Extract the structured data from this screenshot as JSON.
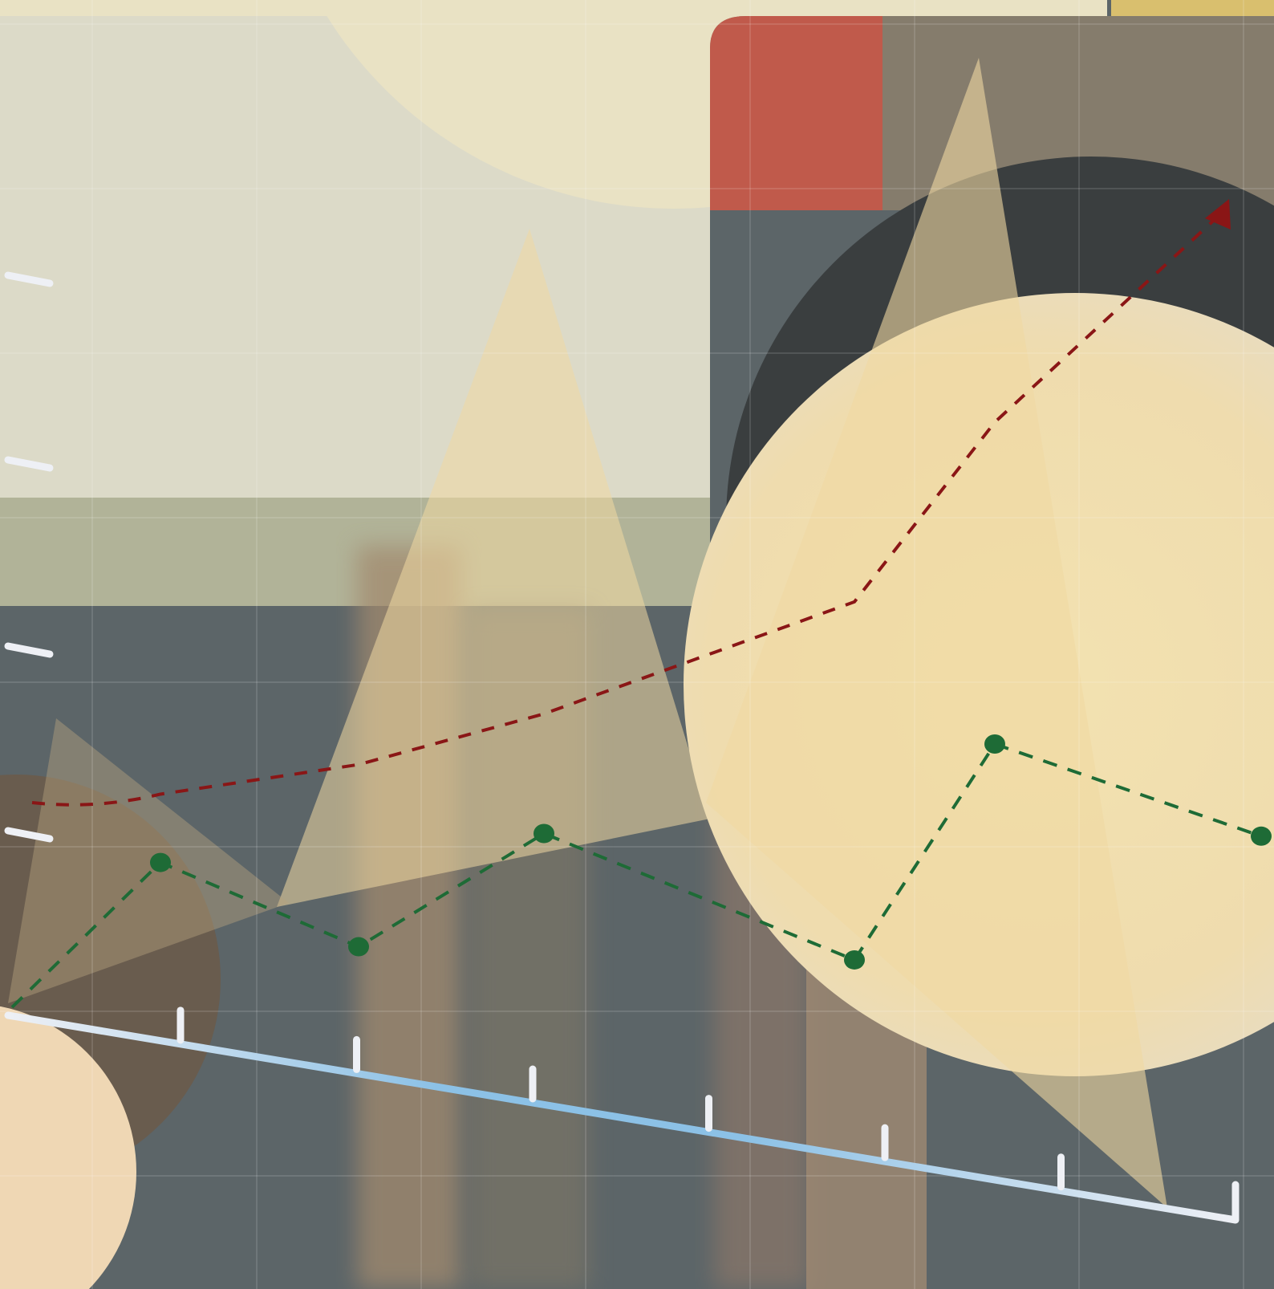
{
  "colors": {
    "background_dark": "#5c6568",
    "cream": "#e9e2c4",
    "pale_panel": "#dcdac8",
    "olive_band": "#b1b398",
    "red_tile": "#c05a4b",
    "taupe": "#857c6c",
    "charcoal": "#3a3e3f",
    "sand_triangle": "#f0d9a2",
    "axis_white": "#eef0f5",
    "axis_blue": "#8cc1e6",
    "green_series": "#1e6b36",
    "red_series": "#8a1616",
    "gold_strip": "#d9bf6e"
  },
  "icons": {
    "arrowhead": "triangle-arrow-icon"
  },
  "chart_data": {
    "type": "line",
    "title": "",
    "xlabel": "",
    "ylabel": "",
    "grid": true,
    "legend": "none",
    "x_tick_count": 7,
    "y_tick_count": 4,
    "series": [
      {
        "style": "dashed-with-markers",
        "color": "#1e6b36",
        "points": [
          [
            0,
            0
          ],
          [
            1,
            0.55
          ],
          [
            2,
            0.23
          ],
          [
            3,
            0.66
          ],
          [
            4,
            0.18
          ],
          [
            5,
            1.0
          ],
          [
            6,
            0.65
          ]
        ]
      },
      {
        "style": "dashed-curve-with-arrow",
        "color": "#8a1616",
        "points": [
          [
            0,
            1.0
          ],
          [
            1,
            1.04
          ],
          [
            2,
            1.18
          ],
          [
            3,
            1.42
          ],
          [
            4,
            1.95
          ],
          [
            5,
            2.8
          ],
          [
            6,
            3.78
          ]
        ]
      }
    ]
  }
}
